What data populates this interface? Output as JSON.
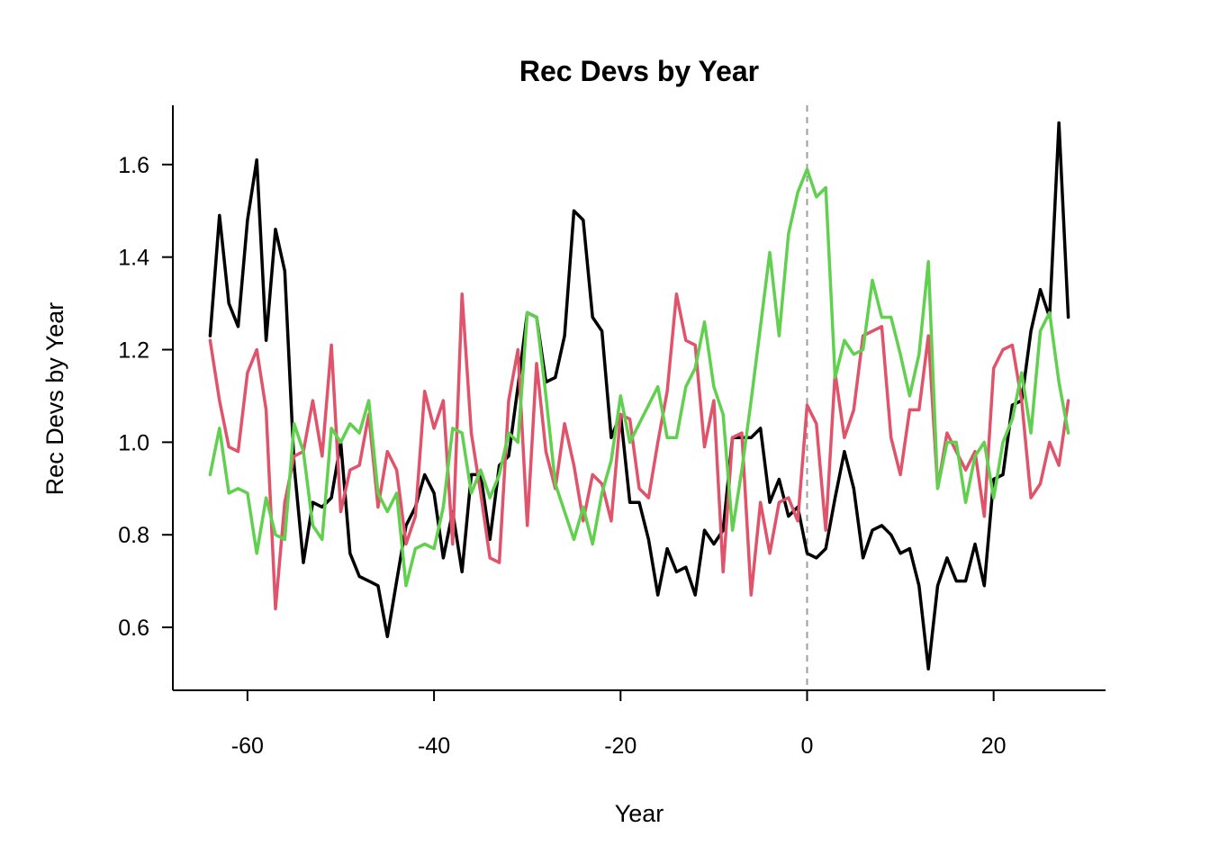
{
  "chart_data": {
    "type": "line",
    "title": "Rec Devs by Year",
    "xlabel": "Year",
    "ylabel": "Rec Devs by Year",
    "xlim": [
      -68,
      32
    ],
    "ylim": [
      0.464,
      1.728
    ],
    "xticks": [
      -60,
      -40,
      -20,
      0,
      20
    ],
    "yticks": [
      0.6,
      0.8,
      1.0,
      1.2,
      1.4,
      1.6
    ],
    "xtick_labels": [
      "-60",
      "-40",
      "-20",
      "0",
      "20"
    ],
    "ytick_labels": [
      "0.6",
      "0.8",
      "1.0",
      "1.2",
      "1.4",
      "1.6"
    ],
    "reference_line_x": 0,
    "x": [
      -64,
      -63,
      -62,
      -61,
      -60,
      -59,
      -58,
      -57,
      -56,
      -55,
      -54,
      -53,
      -52,
      -51,
      -50,
      -49,
      -48,
      -47,
      -46,
      -45,
      -44,
      -43,
      -42,
      -41,
      -40,
      -39,
      -38,
      -37,
      -36,
      -35,
      -34,
      -33,
      -32,
      -31,
      -30,
      -29,
      -28,
      -27,
      -26,
      -25,
      -24,
      -23,
      -22,
      -21,
      -20,
      -19,
      -18,
      -17,
      -16,
      -15,
      -14,
      -13,
      -12,
      -11,
      -10,
      -9,
      -8,
      -7,
      -6,
      -5,
      -4,
      -3,
      -2,
      -1,
      0,
      1,
      2,
      3,
      4,
      5,
      6,
      7,
      8,
      9,
      10,
      11,
      12,
      13,
      14,
      15,
      16,
      17,
      18,
      19,
      20,
      21,
      22,
      23,
      24,
      25,
      26,
      27,
      28
    ],
    "series": [
      {
        "color": "#000000",
        "values": [
          1.23,
          1.49,
          1.3,
          1.25,
          1.48,
          1.61,
          1.22,
          1.46,
          1.37,
          0.95,
          0.74,
          0.87,
          0.86,
          0.88,
          1.0,
          0.76,
          0.71,
          0.7,
          0.69,
          0.58,
          0.7,
          0.82,
          0.86,
          0.93,
          0.89,
          0.75,
          0.85,
          0.72,
          0.93,
          0.93,
          0.79,
          0.95,
          0.97,
          1.12,
          1.28,
          1.27,
          1.13,
          1.14,
          1.23,
          1.5,
          1.48,
          1.27,
          1.24,
          1.01,
          1.06,
          0.87,
          0.87,
          0.79,
          0.67,
          0.77,
          0.72,
          0.73,
          0.67,
          0.81,
          0.78,
          0.81,
          1.01,
          1.01,
          1.01,
          1.03,
          0.87,
          0.92,
          0.84,
          0.86,
          0.76,
          0.75,
          0.77,
          0.88,
          0.98,
          0.9,
          0.75,
          0.81,
          0.82,
          0.8,
          0.76,
          0.77,
          0.69,
          0.51,
          0.69,
          0.75,
          0.7,
          0.7,
          0.78,
          0.69,
          0.92,
          0.93,
          1.08,
          1.09,
          1.24,
          1.33,
          1.27,
          1.69,
          1.27
        ]
      },
      {
        "color": "#DF536B",
        "values": [
          1.22,
          1.09,
          0.99,
          0.98,
          1.15,
          1.2,
          1.07,
          0.64,
          0.87,
          0.97,
          0.98,
          1.09,
          0.97,
          1.21,
          0.85,
          0.94,
          0.95,
          1.06,
          0.86,
          0.98,
          0.94,
          0.78,
          0.84,
          1.11,
          1.03,
          1.09,
          0.78,
          1.32,
          1.02,
          0.89,
          0.75,
          0.74,
          1.09,
          1.2,
          0.82,
          1.17,
          0.98,
          0.9,
          1.04,
          0.95,
          0.83,
          0.93,
          0.91,
          0.83,
          1.06,
          1.05,
          0.9,
          0.88,
          1.0,
          1.11,
          1.32,
          1.22,
          1.21,
          0.99,
          1.09,
          0.72,
          1.01,
          1.02,
          0.67,
          0.87,
          0.76,
          0.87,
          0.88,
          0.83,
          1.08,
          1.04,
          0.81,
          1.15,
          1.01,
          1.07,
          1.23,
          1.24,
          1.25,
          1.01,
          0.93,
          1.07,
          1.07,
          1.23,
          0.9,
          1.02,
          0.98,
          0.94,
          0.98,
          0.84,
          1.16,
          1.2,
          1.21,
          1.09,
          0.88,
          0.91,
          1.0,
          0.95,
          1.09
        ]
      },
      {
        "color": "#61D04F",
        "values": [
          0.93,
          1.03,
          0.89,
          0.9,
          0.89,
          0.76,
          0.88,
          0.8,
          0.79,
          1.04,
          0.98,
          0.82,
          0.79,
          1.03,
          1.0,
          1.04,
          1.02,
          1.09,
          0.89,
          0.85,
          0.89,
          0.69,
          0.77,
          0.78,
          0.77,
          0.86,
          1.03,
          1.02,
          0.89,
          0.94,
          0.88,
          0.93,
          1.02,
          1.0,
          1.28,
          1.27,
          1.1,
          0.91,
          0.85,
          0.79,
          0.86,
          0.78,
          0.89,
          0.96,
          1.1,
          1.0,
          1.04,
          1.08,
          1.12,
          1.01,
          1.01,
          1.12,
          1.16,
          1.26,
          1.12,
          1.06,
          0.81,
          0.94,
          1.09,
          1.25,
          1.41,
          1.23,
          1.45,
          1.54,
          1.59,
          1.53,
          1.55,
          1.14,
          1.22,
          1.19,
          1.2,
          1.35,
          1.27,
          1.27,
          1.19,
          1.1,
          1.19,
          1.39,
          0.9,
          1.0,
          1.0,
          0.87,
          0.97,
          1.0,
          0.88,
          1.0,
          1.05,
          1.15,
          1.02,
          1.24,
          1.28,
          1.13,
          1.02
        ]
      }
    ]
  }
}
